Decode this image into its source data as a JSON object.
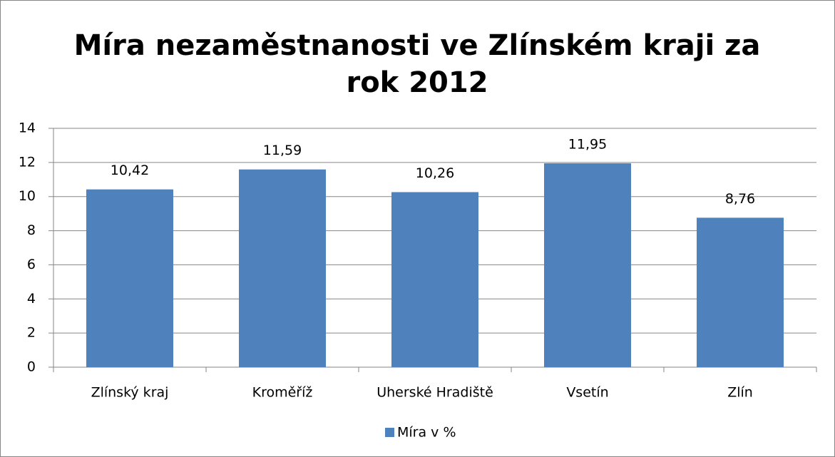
{
  "chart_data": {
    "type": "bar",
    "title": "Míra nezaměstnanosti ve Zlínském kraji za rok 2012",
    "categories": [
      "Zlínský kraj",
      "Kroměříž",
      "Uherské Hradiště",
      "Vsetín",
      "Zlín"
    ],
    "series": [
      {
        "name": "Míra v %",
        "color": "#4f81bd",
        "values": [
          10.42,
          11.59,
          10.26,
          11.95,
          8.76
        ],
        "value_labels": [
          "10,42",
          "11,59",
          "10,26",
          "11,95",
          "8,76"
        ]
      }
    ],
    "ylim": [
      0,
      14
    ],
    "yticks": [
      0,
      2,
      4,
      6,
      8,
      10,
      12,
      14
    ],
    "grid": true,
    "legend": "bottom"
  }
}
